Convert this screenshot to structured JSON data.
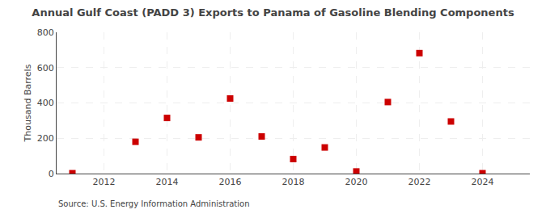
{
  "chart_data": {
    "type": "scatter",
    "title": "Annual Gulf Coast (PADD 3) Exports to Panama of Gasoline Blending Components",
    "ylabel": "Thousand Barrels",
    "source": "Source: U.S. Energy Information Administration",
    "x": [
      2011,
      2013,
      2014,
      2015,
      2016,
      2017,
      2018,
      2019,
      2020,
      2021,
      2022,
      2023,
      2024
    ],
    "values": [
      2,
      180,
      315,
      205,
      425,
      210,
      82,
      148,
      12,
      405,
      682,
      295,
      2
    ],
    "color": "#cc0000",
    "marker": "square",
    "xlim": [
      2010.5,
      2025.5
    ],
    "xticks": [
      2012,
      2014,
      2016,
      2018,
      2020,
      2022,
      2024
    ],
    "ylim": [
      0,
      800
    ],
    "yticks": [
      0,
      200,
      400,
      600,
      800
    ],
    "grid": true
  }
}
